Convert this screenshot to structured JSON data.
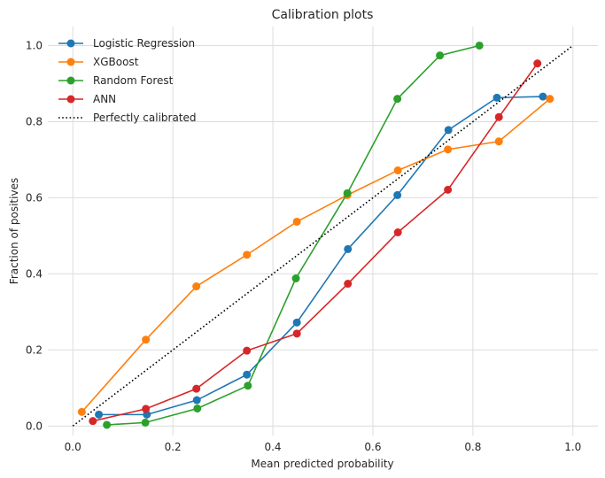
{
  "chart_data": {
    "type": "line",
    "title": "Calibration plots",
    "xlabel": "Mean predicted probability",
    "ylabel": "Fraction of positives",
    "xlim": [
      -0.05,
      1.05
    ],
    "ylim": [
      -0.025,
      1.05
    ],
    "xticks": [
      "0.0",
      "0.2",
      "0.4",
      "0.6",
      "0.8",
      "1.0"
    ],
    "yticks": [
      "0.0",
      "0.2",
      "0.4",
      "0.6",
      "0.8",
      "1.0"
    ],
    "grid": true,
    "legend_position": "upper left",
    "series": [
      {
        "name": "Logistic Regression",
        "color": "#1f77b4",
        "marker": "circle",
        "x": [
          0.052,
          0.148,
          0.248,
          0.348,
          0.448,
          0.55,
          0.649,
          0.751,
          0.848,
          0.94
        ],
        "y": [
          0.03,
          0.03,
          0.068,
          0.135,
          0.272,
          0.465,
          0.607,
          0.778,
          0.863,
          0.866
        ]
      },
      {
        "name": "XGBoost",
        "color": "#ff7f0e",
        "marker": "circle",
        "x": [
          0.018,
          0.146,
          0.247,
          0.348,
          0.448,
          0.549,
          0.65,
          0.75,
          0.852,
          0.954
        ],
        "y": [
          0.037,
          0.227,
          0.367,
          0.45,
          0.537,
          0.607,
          0.672,
          0.727,
          0.748,
          0.86
        ]
      },
      {
        "name": "Random Forest",
        "color": "#2ca02c",
        "marker": "circle",
        "x": [
          0.068,
          0.145,
          0.249,
          0.35,
          0.446,
          0.549,
          0.649,
          0.734,
          0.813
        ],
        "y": [
          0.003,
          0.009,
          0.046,
          0.106,
          0.388,
          0.612,
          0.86,
          0.974,
          1.0
        ]
      },
      {
        "name": "ANN",
        "color": "#d62728",
        "marker": "circle",
        "x": [
          0.04,
          0.146,
          0.247,
          0.348,
          0.448,
          0.55,
          0.65,
          0.75,
          0.852,
          0.929
        ],
        "y": [
          0.013,
          0.045,
          0.098,
          0.198,
          0.243,
          0.374,
          0.509,
          0.621,
          0.812,
          0.953
        ]
      },
      {
        "name": "Perfectly calibrated",
        "color": "#000000",
        "style": "dotted",
        "marker": "none",
        "x": [
          0.0,
          1.0
        ],
        "y": [
          0.0,
          1.0
        ]
      }
    ]
  }
}
